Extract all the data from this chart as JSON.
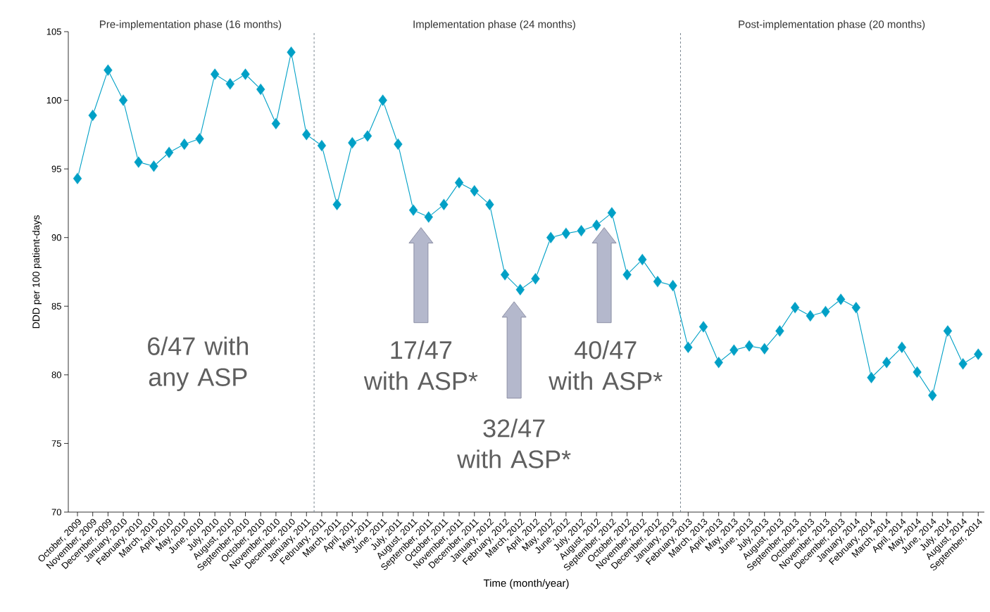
{
  "chart_data": {
    "type": "line",
    "xlabel": "Time (month/year)",
    "ylabel": "DDD per 100 patient-days",
    "categories": [
      "October, 2009",
      "November, 2009",
      "December, 2009",
      "January, 2010",
      "February, 2010",
      "March, 2010",
      "April, 2010",
      "May, 2010",
      "June, 2010",
      "July, 2010",
      "August, 2010",
      "September, 2010",
      "October, 2010",
      "November, 2010",
      "December, 2010",
      "January, 2011",
      "February, 2011",
      "March, 2011",
      "April, 2011",
      "May, 2011",
      "June, 2011",
      "July, 2011",
      "August, 2011",
      "September, 2011",
      "October, 2011",
      "November, 2011",
      "December, 2011",
      "January, 2012",
      "February, 2012",
      "March, 2012",
      "April, 2012",
      "May, 2012",
      "June, 2012",
      "July, 2012",
      "August, 2012",
      "September, 2012",
      "October, 2012",
      "November, 2012",
      "December, 2012",
      "January, 2013",
      "February, 2013",
      "March, 2013",
      "April, 2013",
      "May, 2013",
      "June, 2013",
      "July, 2013",
      "August, 2013",
      "September, 2013",
      "October, 2013",
      "November, 2013",
      "December, 2013",
      "January, 2014",
      "February, 2014",
      "March, 2014",
      "April, 2014",
      "May, 2014",
      "June, 2014",
      "July, 2014",
      "August, 2014",
      "September, 2014"
    ],
    "series": [
      {
        "color": "#00a0c6",
        "values": [
          94.3,
          98.9,
          102.2,
          100.0,
          95.5,
          95.2,
          96.2,
          96.8,
          97.2,
          101.9,
          101.2,
          101.9,
          100.8,
          98.3,
          103.5,
          97.5,
          96.7,
          92.4,
          96.9,
          97.4,
          100.0,
          96.8,
          92.0,
          91.5,
          92.4,
          94.0,
          93.4,
          92.4,
          87.3,
          86.2,
          87.0,
          90.0,
          90.3,
          90.5,
          90.9,
          91.8,
          87.3,
          88.4,
          86.8,
          86.5,
          82.0,
          83.5,
          80.9,
          81.8,
          82.1,
          81.9,
          83.2,
          84.9,
          84.3,
          84.6,
          85.5,
          84.9,
          79.8,
          80.9,
          82.0,
          80.2,
          78.5,
          83.2,
          80.8,
          81.5
        ]
      }
    ],
    "ylim": [
      70,
      105
    ],
    "yticks": [
      70,
      75,
      80,
      85,
      90,
      95,
      100,
      105
    ],
    "marker": "diamond",
    "line_style": "solid",
    "grid": false,
    "annotations": [
      "Pre-implementation phase (16 months)",
      "Implementation phase (24 months)",
      "Post-implementation phase (20 months)",
      "6/47 with any ASP",
      "17/47 with ASP*",
      "32/47 with ASP*",
      "40/47 with ASP*"
    ]
  }
}
